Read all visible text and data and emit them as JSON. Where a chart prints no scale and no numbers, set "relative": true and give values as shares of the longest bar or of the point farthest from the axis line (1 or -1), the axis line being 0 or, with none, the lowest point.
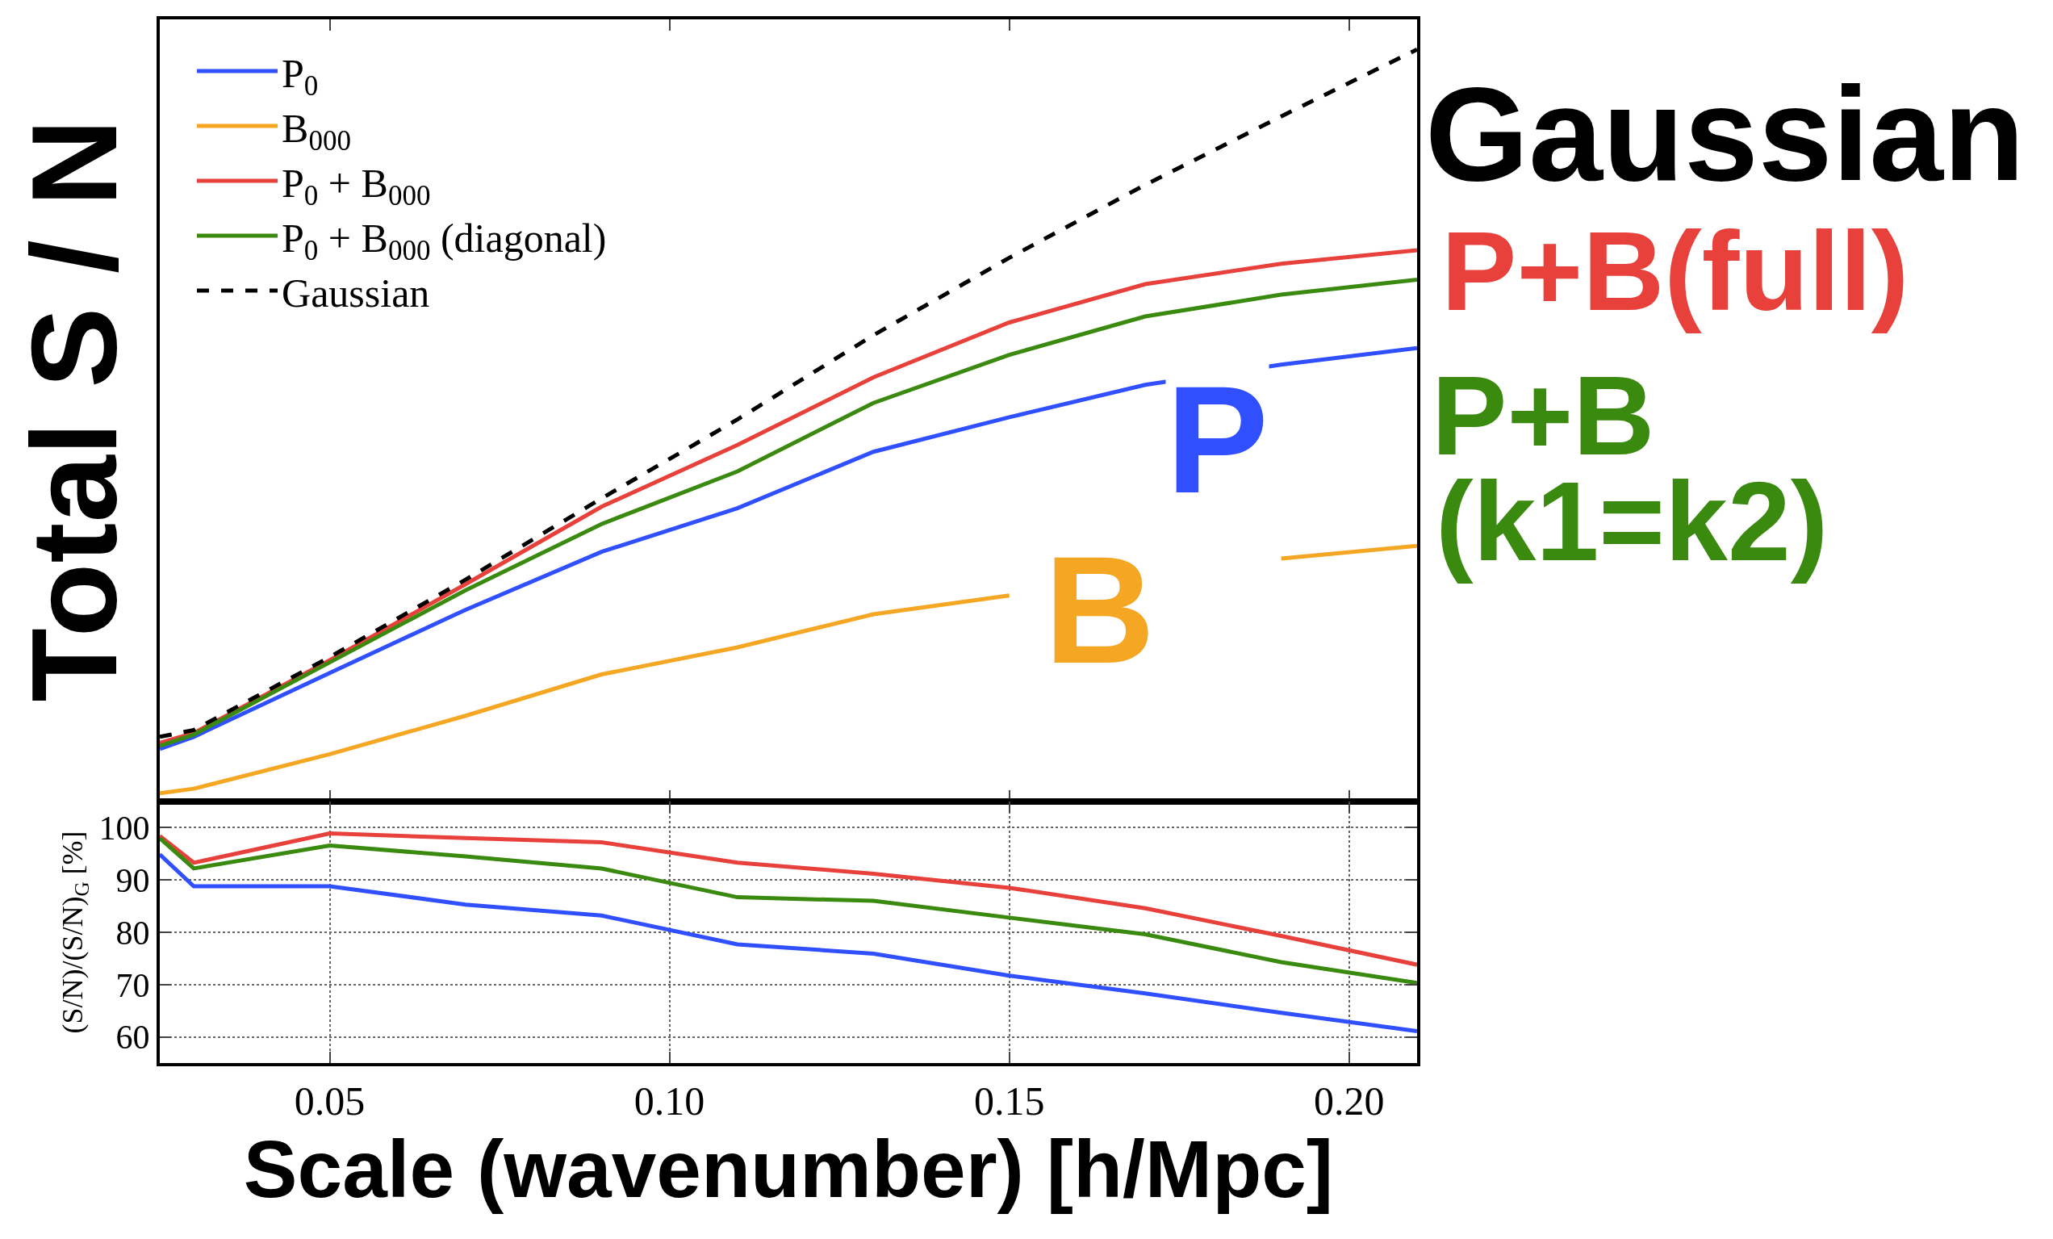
{
  "chart_data": [
    {
      "type": "line",
      "relative": true,
      "ylabel": "Total S / N",
      "xlim": [
        0.025,
        0.21
      ],
      "xticks": [
        0.05,
        0.1,
        0.15,
        0.2
      ],
      "tick_labels": false,
      "legend": "top left",
      "grid": false,
      "x": [
        0.025,
        0.03,
        0.05,
        0.07,
        0.09,
        0.11,
        0.13,
        0.15,
        0.17,
        0.19,
        0.21
      ],
      "series": [
        {
          "name": "P$_{0}$",
          "color": "#3050ff",
          "values": [
            0.07,
            0.086,
            0.171,
            0.255,
            0.332,
            0.39,
            0.465,
            0.511,
            0.554,
            0.581,
            0.603
          ]
        },
        {
          "name": "B$_{000}$",
          "color": "#f5a623",
          "values": [
            0.011,
            0.017,
            0.063,
            0.114,
            0.169,
            0.205,
            0.249,
            0.274,
            null,
            0.323,
            0.34
          ]
        },
        {
          "name": "P$_{0}$ + B$_{000}$",
          "color": "#e8403a",
          "values": [
            0.078,
            0.091,
            0.188,
            0.289,
            0.392,
            0.474,
            0.564,
            0.637,
            0.688,
            0.715,
            0.733
          ]
        },
        {
          "name": "P$_{0}$ + B$_{000}$ (diagonal)",
          "color": "#3a8a10",
          "values": [
            0.074,
            0.089,
            0.185,
            0.281,
            0.369,
            0.439,
            0.53,
            0.594,
            0.645,
            0.674,
            0.694
          ]
        },
        {
          "name": "Gaussian",
          "color": "#000000",
          "line_style": "dashed",
          "values": [
            0.086,
            0.095,
            0.192,
            0.295,
            0.403,
            0.508,
            0.62,
            0.723,
            0.82,
            0.911,
            1.0
          ]
        }
      ],
      "annotations": [
        "Gaussian",
        "P+B(full)",
        "P+B",
        "(k1=k2)",
        "P",
        "B"
      ]
    },
    {
      "type": "line",
      "xlabel": "Scale (wavenumber) [h/Mpc]",
      "ylabel": "(S/N)/(S/N)$_{G}$ [%]",
      "xlim": [
        0.025,
        0.21
      ],
      "xticks": [
        {
          "value": 0.05,
          "label": "0.05"
        },
        {
          "value": 0.1,
          "label": "0.10"
        },
        {
          "value": 0.15,
          "label": "0.15"
        },
        {
          "value": 0.2,
          "label": "0.20"
        }
      ],
      "ylim": [
        55,
        105
      ],
      "yticks": [
        60,
        70,
        80,
        90,
        100
      ],
      "grid": true,
      "legend": false,
      "x": [
        0.025,
        0.03,
        0.05,
        0.07,
        0.09,
        0.11,
        0.13,
        0.15,
        0.17,
        0.19,
        0.21
      ],
      "series": [
        {
          "color": "#3050ff",
          "values": [
            94.9,
            88.8,
            88.8,
            85.3,
            83.2,
            77.7,
            75.9,
            71.7,
            68.3,
            64.6,
            61.1
          ]
        },
        {
          "color": "#e8403a",
          "values": [
            98.4,
            93.3,
            98.9,
            98.0,
            97.2,
            93.3,
            91.2,
            88.5,
            84.6,
            79.3,
            73.8
          ]
        },
        {
          "color": "#3a8a10",
          "values": [
            98.0,
            92.2,
            96.6,
            94.5,
            92.2,
            86.7,
            86.0,
            82.8,
            79.6,
            74.3,
            70.3
          ]
        }
      ]
    }
  ]
}
